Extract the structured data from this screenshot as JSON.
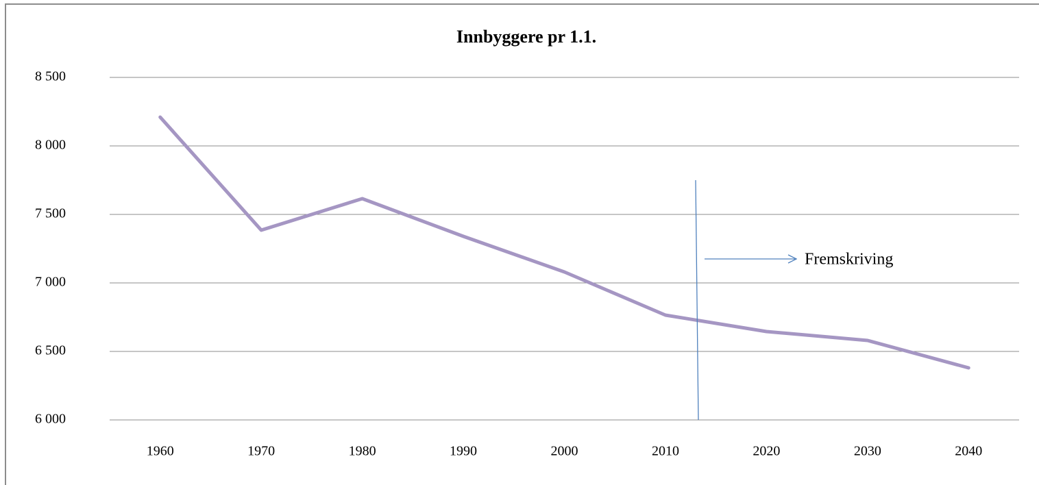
{
  "chart_data": {
    "type": "line",
    "title": "Innbyggere pr 1.1.",
    "categories": [
      "1960",
      "1970",
      "1980",
      "1990",
      "2000",
      "2010",
      "2020",
      "2030",
      "2040"
    ],
    "values": [
      8210,
      7385,
      7615,
      7340,
      7080,
      6765,
      6645,
      6580,
      6380
    ],
    "color": "#a596c3",
    "ylim": [
      6000,
      8500
    ],
    "yticks": [
      {
        "value": 6000,
        "label": "6 000"
      },
      {
        "value": 6500,
        "label": "6 500"
      },
      {
        "value": 7000,
        "label": "7 000"
      },
      {
        "value": 7500,
        "label": "7 500"
      },
      {
        "value": 8000,
        "label": "8 000"
      },
      {
        "value": 8500,
        "label": "8 500"
      }
    ],
    "grid": true,
    "annotation": "Fremskriving"
  }
}
